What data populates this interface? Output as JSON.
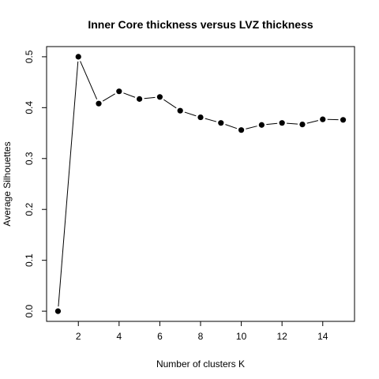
{
  "chart_data": {
    "type": "line",
    "title": "Inner Core thickness versus LVZ thickness",
    "xlabel": "Number of clusters K",
    "ylabel": "Average Silhouettes",
    "x": [
      1,
      2,
      3,
      4,
      5,
      6,
      7,
      8,
      9,
      10,
      11,
      12,
      13,
      14,
      15
    ],
    "y": [
      0.0,
      0.5,
      0.408,
      0.432,
      0.417,
      0.421,
      0.394,
      0.381,
      0.37,
      0.356,
      0.366,
      0.37,
      0.367,
      0.377,
      0.376
    ],
    "xlim": [
      0.44,
      15.56
    ],
    "ylim": [
      -0.02,
      0.52
    ],
    "xticks": [
      2,
      4,
      6,
      8,
      10,
      12,
      14
    ],
    "yticks": [
      0.0,
      0.1,
      0.2,
      0.3,
      0.4,
      0.5
    ],
    "xtick_labels": [
      "2",
      "4",
      "6",
      "8",
      "10",
      "12",
      "14"
    ],
    "ytick_labels": [
      "0.0",
      "0.1",
      "0.2",
      "0.3",
      "0.4",
      "0.5"
    ],
    "grid": false,
    "legend": false,
    "colors": {
      "line": "#000000",
      "points": "#000000",
      "axes": "#000000"
    }
  }
}
